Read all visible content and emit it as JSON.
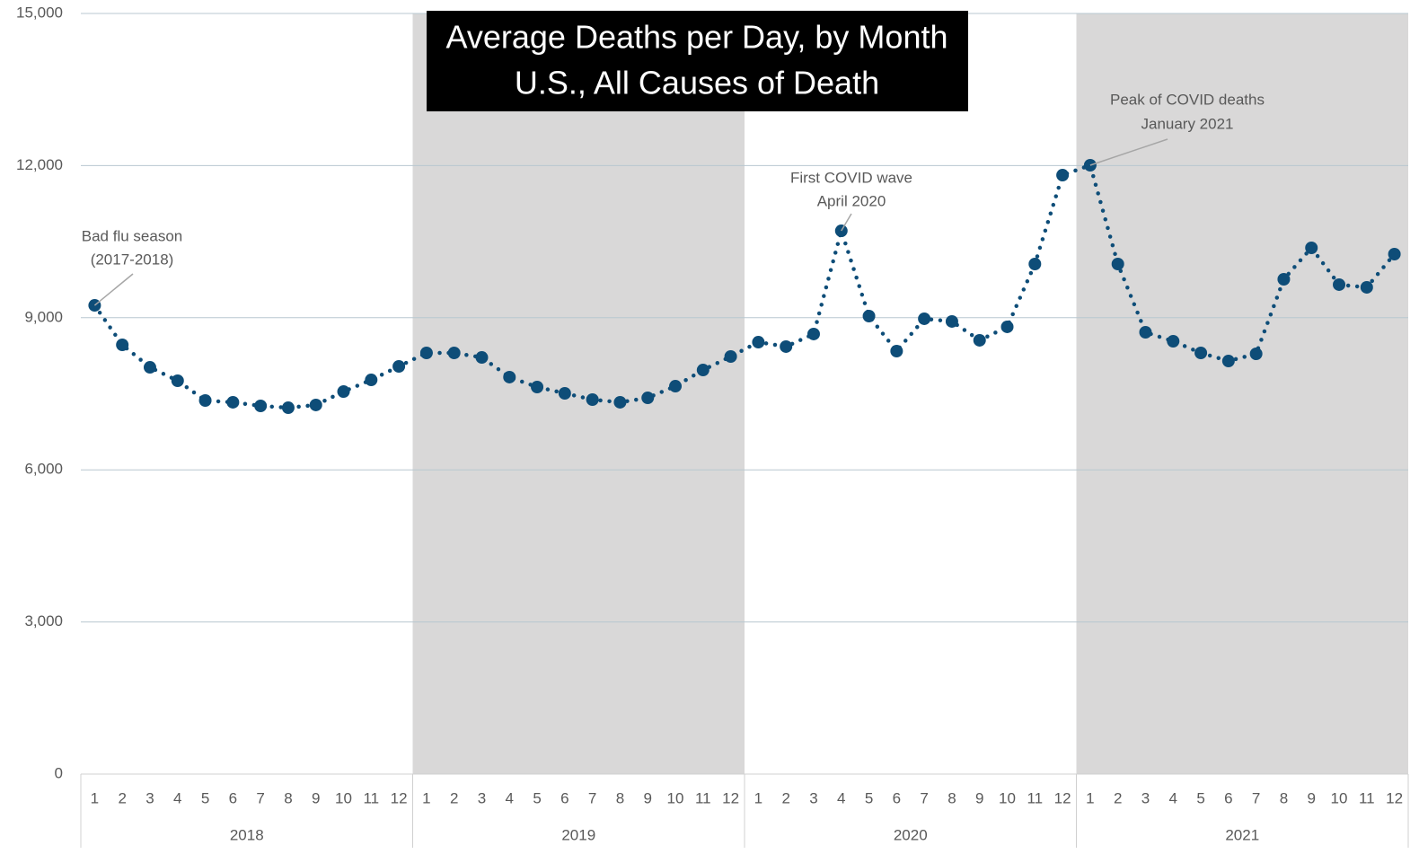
{
  "chart_data": {
    "type": "line",
    "title": "Average Deaths per Day, by Month",
    "subtitle": "U.S., All Causes of Death",
    "categories": [
      "1",
      "2",
      "3",
      "4",
      "5",
      "6",
      "7",
      "8",
      "9",
      "10",
      "11",
      "12",
      "1",
      "2",
      "3",
      "4",
      "5",
      "6",
      "7",
      "8",
      "9",
      "10",
      "11",
      "12",
      "1",
      "2",
      "3",
      "4",
      "5",
      "6",
      "7",
      "8",
      "9",
      "10",
      "11",
      "12",
      "1",
      "2",
      "3",
      "4",
      "5",
      "6",
      "7",
      "8",
      "9",
      "10",
      "11",
      "12"
    ],
    "groups": [
      "2018",
      "2019",
      "2020",
      "2021"
    ],
    "series": [
      {
        "name": "Average deaths per day",
        "color": "#0e4d78",
        "values": [
          9244,
          8465,
          8022,
          7757,
          7367,
          7332,
          7261,
          7225,
          7279,
          7544,
          7774,
          8040,
          8306,
          8306,
          8217,
          7828,
          7633,
          7509,
          7385,
          7332,
          7420,
          7650,
          7969,
          8235,
          8518,
          8430,
          8678,
          10714,
          9032,
          8341,
          8979,
          8926,
          8554,
          8820,
          10059,
          11812,
          12007,
          10059,
          8713,
          8536,
          8306,
          8146,
          8288,
          9758,
          10378,
          9652,
          9599,
          10254
        ]
      }
    ],
    "ylim": [
      0,
      15000
    ],
    "yticks": [
      0,
      {
        "value": 3000,
        "label": "3,000"
      },
      {
        "value": 6000,
        "label": "6,000"
      },
      {
        "value": 9000,
        "label": "9,000"
      },
      {
        "value": 12000,
        "label": "12,000"
      },
      {
        "value": 15000,
        "label": "15,000"
      }
    ],
    "grid": true,
    "annotations": [
      {
        "lines": [
          "Bad flu season",
          "(2017-2018)"
        ]
      },
      {
        "lines": [
          "First COVID wave",
          "April 2020"
        ]
      },
      {
        "lines": [
          "Peak of COVID deaths",
          "January 2021"
        ]
      }
    ]
  }
}
